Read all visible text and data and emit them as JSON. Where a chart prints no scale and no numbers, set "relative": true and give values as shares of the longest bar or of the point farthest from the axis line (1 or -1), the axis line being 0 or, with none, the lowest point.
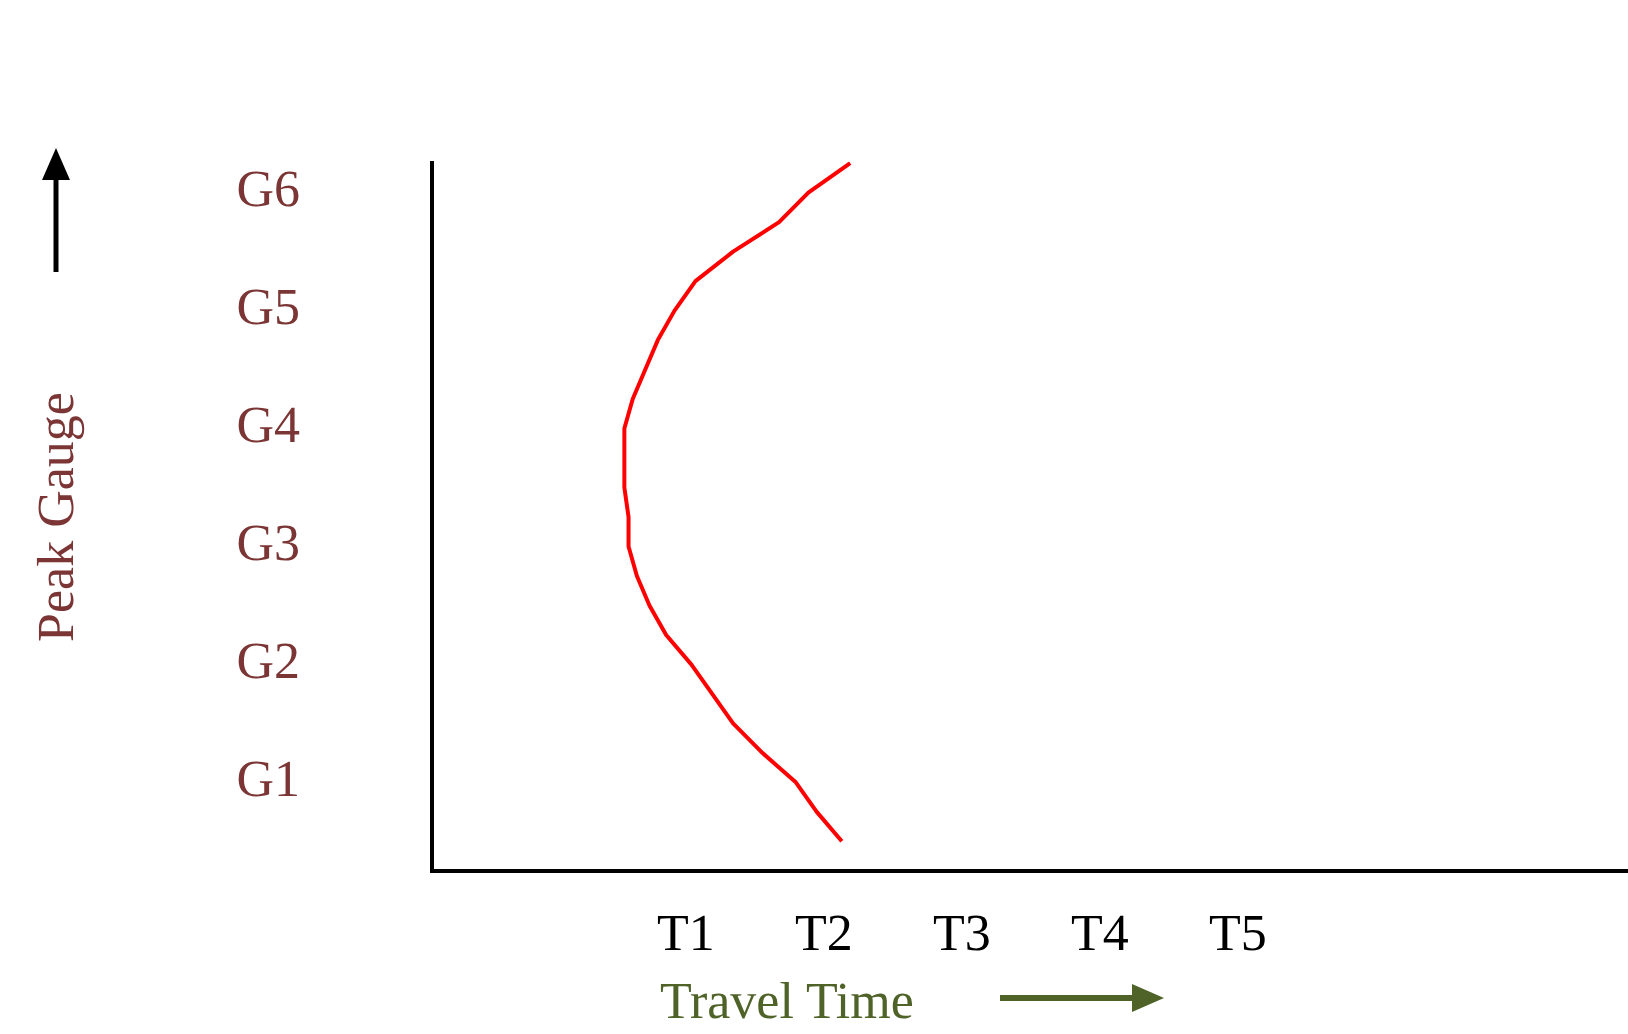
{
  "chart_data": {
    "type": "line",
    "orientation": "horizontal",
    "relative": true,
    "xlabel": "Travel Time",
    "ylabel": "Peak Gauge",
    "categories": [
      null,
      "G6",
      null,
      null,
      null,
      "G5",
      null,
      null,
      null,
      "G4",
      null,
      null,
      null,
      "G3",
      null,
      null,
      null,
      "G2",
      null,
      null,
      null,
      "G1",
      null,
      null,
      null
    ],
    "annotations": [
      "T1",
      "T2",
      "T3",
      "T4",
      "T5"
    ],
    "grid": false,
    "legend": false,
    "marker": "none",
    "line_style": "solid",
    "series": [
      {
        "color": "#ff0000",
        "values": [
          1.0,
          0.9,
          0.83,
          0.72,
          0.63,
          0.58,
          0.54,
          0.51,
          0.48,
          0.46,
          0.46,
          0.46,
          0.47,
          0.47,
          0.49,
          0.52,
          0.56,
          0.62,
          0.67,
          0.72,
          0.79,
          0.87,
          0.92,
          0.98,
          null
        ]
      }
    ]
  }
}
